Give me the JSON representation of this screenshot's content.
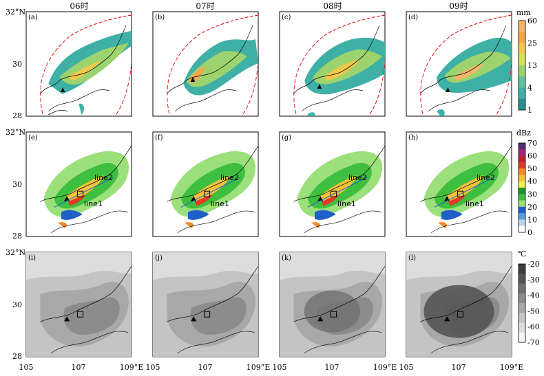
{
  "columns": [
    "06时",
    "07时",
    "08时",
    "09时"
  ],
  "lat_labels": [
    "32°N",
    "30",
    "28"
  ],
  "lon_labels": [
    "105",
    "107",
    "109°E"
  ],
  "panels": [
    {
      "row": "precip",
      "label": "(a)"
    },
    {
      "row": "precip",
      "label": "(b)"
    },
    {
      "row": "precip",
      "label": "(c)"
    },
    {
      "row": "precip",
      "label": "(d)"
    },
    {
      "row": "radar",
      "label": "(e)",
      "line1": "line1",
      "line2": "line2"
    },
    {
      "row": "radar",
      "label": "(f)",
      "line1": "line1",
      "line2": "line2"
    },
    {
      "row": "radar",
      "label": "(g)",
      "line1": "line1",
      "line2": "line2"
    },
    {
      "row": "radar",
      "label": "(h)",
      "line1": "line1",
      "line2": "line2"
    },
    {
      "row": "ctt",
      "label": "(i)"
    },
    {
      "row": "ctt",
      "label": "(j)"
    },
    {
      "row": "ctt",
      "label": "(k)"
    },
    {
      "row": "ctt",
      "label": "(l)"
    }
  ],
  "colorbars": {
    "precip": {
      "unit": "mm",
      "ticks": [
        "60",
        "25",
        "13",
        "4",
        "1"
      ],
      "colors": [
        "#2a8f8f",
        "#3fb0a6",
        "#62c29a",
        "#9dd36e",
        "#d4e05a",
        "#f3c84a",
        "#f6a64a",
        "#f4b66a"
      ]
    },
    "radar": {
      "unit": "dBz",
      "ticks": [
        "70",
        "60",
        "50",
        "40",
        "30",
        "20",
        "10",
        "0"
      ],
      "colors": [
        "#ffffff",
        "#b9d7f0",
        "#5a9fe0",
        "#1e5fc8",
        "#9be07a",
        "#3fbf3f",
        "#1f8f2f",
        "#f5f04a",
        "#f5c23a",
        "#f08a2a",
        "#e03a2a",
        "#c02030",
        "#a0287a",
        "#5a2a7a"
      ]
    },
    "ctt": {
      "unit": "℃",
      "ticks": [
        "-20",
        "-30",
        "-40",
        "-50",
        "-60",
        "-70"
      ],
      "colors": [
        "#f4f4f4",
        "#dcdcdc",
        "#c4c4c4",
        "#a8a8a8",
        "#8c8c8c",
        "#707070",
        "#545454",
        "#3c3c3c"
      ]
    }
  }
}
